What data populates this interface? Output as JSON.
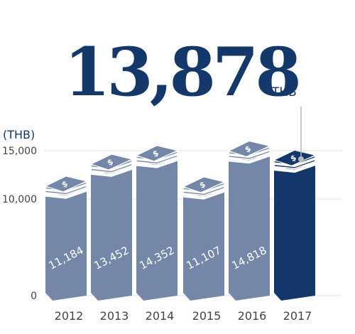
{
  "headline": {
    "value": "13,878",
    "unit": "THB"
  },
  "chart_data": {
    "type": "bar",
    "ylabel": "(THB)",
    "ylim": [
      0,
      15000
    ],
    "yticks": [
      0,
      10000,
      15000
    ],
    "ytick_labels": [
      "0",
      "10,000",
      "15,000"
    ],
    "categories": [
      "2012",
      "2013",
      "2014",
      "2015",
      "2016",
      "2017"
    ],
    "values": [
      11184,
      13452,
      14352,
      11107,
      14818,
      13878
    ],
    "value_labels": [
      "11,184",
      "13,452",
      "14,352",
      "11,107",
      "14,818",
      ""
    ],
    "highlight_index": 5,
    "grid": true,
    "bar_icon": "dollar-stack-icon",
    "colors": {
      "bar": "#7487a8",
      "bar_dark": "#5d7091",
      "bar_highlight": "#13376a",
      "bar_highlight_dark": "#0c2750",
      "grid": "#e3e3e3",
      "axis_text": "#444444",
      "headline": "#14386a"
    }
  }
}
